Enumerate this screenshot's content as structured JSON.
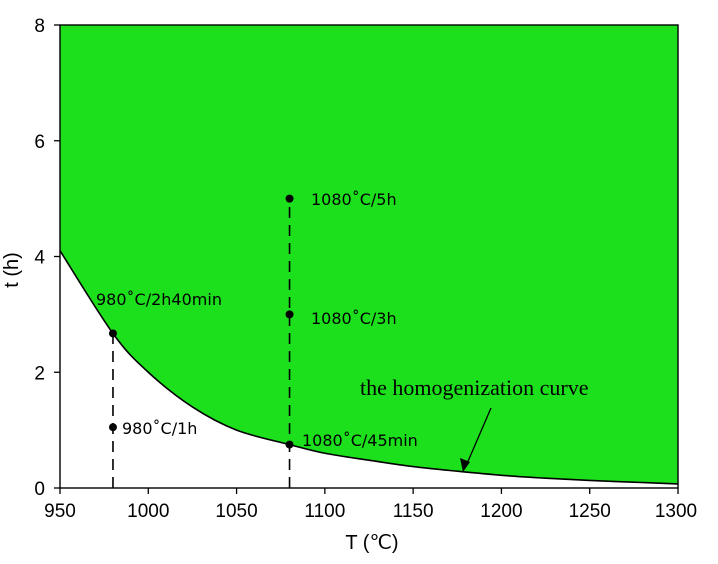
{
  "chart_data": {
    "type": "area",
    "title": "",
    "xlabel": "T (℃)",
    "ylabel": "t (h)",
    "xlim": [
      950,
      1300
    ],
    "ylim": [
      0,
      8
    ],
    "xticks": [
      950,
      1000,
      1050,
      1100,
      1150,
      1200,
      1250,
      1300
    ],
    "yticks": [
      0,
      2,
      4,
      6,
      8
    ],
    "xtick_labels": [
      "950",
      "1000",
      "1050",
      "1100",
      "1150",
      "1200",
      "1250",
      "1300"
    ],
    "ytick_labels": [
      "0",
      "2",
      "4",
      "6",
      "8"
    ],
    "grid": false,
    "fill_color": "#1de01d",
    "curve": {
      "name": "the homogenization curve",
      "x": [
        950,
        980,
        1000,
        1025,
        1050,
        1080,
        1100,
        1125,
        1150,
        1175,
        1200,
        1225,
        1250,
        1275,
        1300
      ],
      "y": [
        4.1,
        2.67,
        2.0,
        1.4,
        1.0,
        0.75,
        0.6,
        0.48,
        0.37,
        0.29,
        0.22,
        0.17,
        0.13,
        0.1,
        0.07
      ]
    },
    "points": [
      {
        "label": "980˚C/2h40min",
        "x": 980,
        "y": 2.67
      },
      {
        "label": "980˚C/1h",
        "x": 980,
        "y": 1.05
      },
      {
        "label": "1080˚C/5h",
        "x": 1080,
        "y": 5.0
      },
      {
        "label": "1080˚C/3h",
        "x": 1080,
        "y": 3.0
      },
      {
        "label": "1080˚C/45min",
        "x": 1080,
        "y": 0.75
      }
    ],
    "dashed_lines": [
      {
        "x": 980,
        "y_from": 0,
        "y_to": 2.67
      },
      {
        "x": 1080,
        "y_from": 0,
        "y_to": 5.0
      }
    ]
  }
}
